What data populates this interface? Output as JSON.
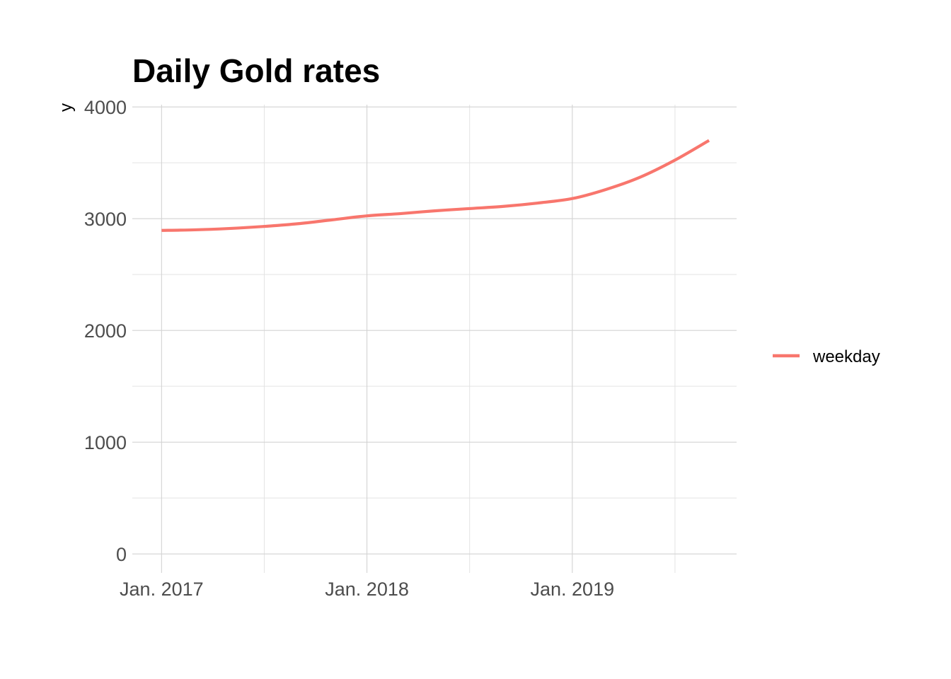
{
  "chart_data": {
    "type": "line",
    "title": "Daily Gold rates",
    "xlabel": "",
    "ylabel": "y",
    "x_tick_labels": [
      "Jan. 2017",
      "Jan. 2018",
      "Jan. 2019"
    ],
    "x_ticks": [
      "2017-01-01",
      "2018-01-01",
      "2019-01-01"
    ],
    "xlim": [
      "2016-11-10",
      "2019-10-20"
    ],
    "y_ticks": [
      0,
      1000,
      2000,
      3000,
      4000
    ],
    "y_tick_labels": [
      "0",
      "1000",
      "2000",
      "3000",
      "4000"
    ],
    "ylim": [
      -170,
      4020
    ],
    "grid": true,
    "legend_position": "right",
    "series": [
      {
        "name": "weekday",
        "color": "#F8766D",
        "x": [
          "2017-01-01",
          "2017-03-01",
          "2017-05-01",
          "2017-07-01",
          "2017-09-01",
          "2017-11-01",
          "2018-01-01",
          "2018-03-01",
          "2018-05-01",
          "2018-07-01",
          "2018-09-01",
          "2018-11-01",
          "2019-01-01",
          "2019-03-01",
          "2019-05-01",
          "2019-07-01",
          "2019-09-01"
        ],
        "y": [
          2895,
          2900,
          2912,
          2930,
          2955,
          2990,
          3025,
          3045,
          3070,
          3090,
          3110,
          3140,
          3180,
          3260,
          3370,
          3520,
          3700
        ]
      }
    ]
  }
}
